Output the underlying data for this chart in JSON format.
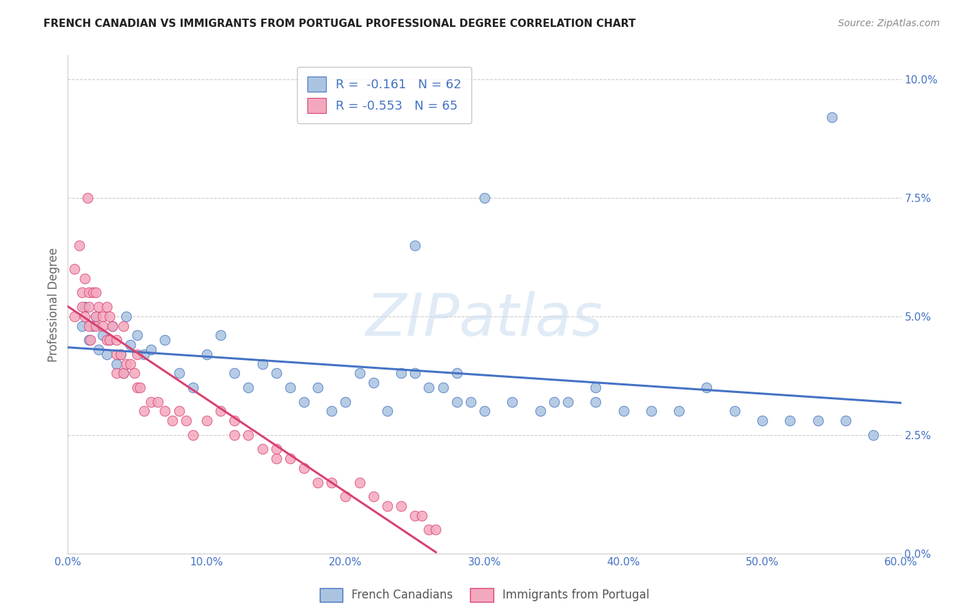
{
  "title": "FRENCH CANADIAN VS IMMIGRANTS FROM PORTUGAL PROFESSIONAL DEGREE CORRELATION CHART",
  "source": "Source: ZipAtlas.com",
  "ylabel": "Professional Degree",
  "xlim": [
    0,
    60
  ],
  "ylim": [
    0,
    10.5
  ],
  "blue_R": -0.161,
  "blue_N": 62,
  "pink_R": -0.553,
  "pink_N": 65,
  "blue_color": "#aac4e0",
  "pink_color": "#f4a8be",
  "blue_line_color": "#4472c4",
  "pink_line_color": "#d94070",
  "legend_blue_label": "French Canadians",
  "legend_pink_label": "Immigrants from Portugal",
  "watermark_text": "ZIPatlas",
  "background_color": "#ffffff",
  "grid_color": "#cccccc",
  "xlabel_vals": [
    0,
    10,
    20,
    30,
    40,
    50,
    60
  ],
  "ylabel_vals": [
    0,
    2.5,
    5.0,
    7.5,
    10.0
  ],
  "blue_x": [
    1.0,
    1.2,
    1.5,
    1.8,
    2.0,
    2.2,
    2.5,
    2.8,
    3.0,
    3.2,
    3.5,
    3.8,
    4.0,
    4.2,
    4.5,
    5.0,
    5.5,
    6.0,
    7.0,
    8.0,
    9.0,
    10.0,
    11.0,
    12.0,
    13.0,
    14.0,
    15.0,
    16.0,
    17.0,
    18.0,
    19.0,
    20.0,
    21.0,
    22.0,
    23.0,
    24.0,
    25.0,
    26.0,
    27.0,
    28.0,
    29.0,
    30.0,
    32.0,
    34.0,
    36.0,
    38.0,
    40.0,
    42.0,
    44.0,
    46.0,
    48.0,
    50.0,
    52.0,
    54.0,
    56.0,
    58.0,
    25.0,
    28.0,
    30.0,
    35.0,
    38.0,
    55.0
  ],
  "blue_y": [
    4.8,
    5.2,
    4.5,
    4.8,
    5.0,
    4.3,
    4.6,
    4.2,
    4.5,
    4.8,
    4.0,
    4.2,
    3.8,
    5.0,
    4.4,
    4.6,
    4.2,
    4.3,
    4.5,
    3.8,
    3.5,
    4.2,
    4.6,
    3.8,
    3.5,
    4.0,
    3.8,
    3.5,
    3.2,
    3.5,
    3.0,
    3.2,
    3.8,
    3.6,
    3.0,
    3.8,
    3.8,
    3.5,
    3.5,
    3.2,
    3.2,
    3.0,
    3.2,
    3.0,
    3.2,
    3.2,
    3.0,
    3.0,
    3.0,
    3.5,
    3.0,
    2.8,
    2.8,
    2.8,
    2.8,
    2.5,
    6.5,
    3.8,
    7.5,
    3.2,
    3.5,
    9.2
  ],
  "pink_x": [
    0.5,
    0.5,
    0.8,
    1.0,
    1.0,
    1.2,
    1.2,
    1.4,
    1.5,
    1.5,
    1.5,
    1.6,
    1.8,
    2.0,
    2.0,
    2.0,
    2.2,
    2.5,
    2.5,
    2.8,
    2.8,
    3.0,
    3.0,
    3.2,
    3.5,
    3.5,
    3.5,
    3.8,
    4.0,
    4.0,
    4.2,
    4.5,
    4.8,
    5.0,
    5.0,
    5.2,
    5.5,
    6.0,
    6.5,
    7.0,
    7.5,
    8.0,
    8.5,
    9.0,
    10.0,
    11.0,
    12.0,
    12.0,
    13.0,
    14.0,
    15.0,
    15.0,
    16.0,
    17.0,
    18.0,
    19.0,
    20.0,
    21.0,
    22.0,
    23.0,
    24.0,
    25.0,
    25.5,
    26.0,
    26.5
  ],
  "pink_y": [
    5.0,
    6.0,
    6.5,
    5.5,
    5.2,
    5.0,
    5.8,
    7.5,
    5.2,
    4.8,
    5.5,
    4.5,
    5.5,
    5.0,
    4.8,
    5.5,
    5.2,
    5.0,
    4.8,
    5.2,
    4.5,
    5.0,
    4.5,
    4.8,
    4.2,
    3.8,
    4.5,
    4.2,
    4.8,
    3.8,
    4.0,
    4.0,
    3.8,
    4.2,
    3.5,
    3.5,
    3.0,
    3.2,
    3.2,
    3.0,
    2.8,
    3.0,
    2.8,
    2.5,
    2.8,
    3.0,
    2.5,
    2.8,
    2.5,
    2.2,
    2.0,
    2.2,
    2.0,
    1.8,
    1.5,
    1.5,
    1.2,
    1.5,
    1.2,
    1.0,
    1.0,
    0.8,
    0.8,
    0.5,
    0.5
  ]
}
